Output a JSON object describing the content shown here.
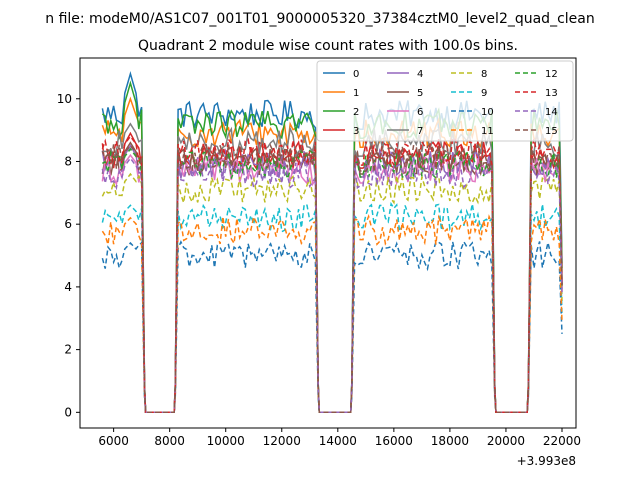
{
  "chart_data": {
    "type": "line",
    "suptitle": "n file: modeM0/AS1C07_001T01_9000005320_37384cztM0_level2_quad_clean",
    "title": "Quadrant 2 module wise count rates with 100.0s bins.",
    "xlabel": "",
    "ylabel": "",
    "x_offset_label": "+3.993e8",
    "xlim": [
      4800,
      22500
    ],
    "ylim": [
      -0.5,
      11.3
    ],
    "xticks": [
      6000,
      8000,
      10000,
      12000,
      14000,
      16000,
      18000,
      20000,
      22000
    ],
    "yticks": [
      0,
      2,
      4,
      6,
      8,
      10
    ],
    "grid": false,
    "legend_placement": "top-right",
    "legend_columns": 4,
    "segments": [
      [
        5600,
        7000
      ],
      [
        8300,
        13200
      ],
      [
        14600,
        19500
      ],
      [
        20900,
        21900
      ]
    ],
    "gap_ramps": [
      [
        7100,
        8200
      ],
      [
        13300,
        14500
      ],
      [
        19600,
        20800
      ]
    ],
    "series": [
      {
        "name": "0",
        "color": "#1f77b4",
        "dash": "solid",
        "level": 9.5,
        "peak": 10.8
      },
      {
        "name": "1",
        "color": "#ff7f0e",
        "dash": "solid",
        "level": 8.9,
        "peak": 10.0
      },
      {
        "name": "2",
        "color": "#2ca02c",
        "dash": "solid",
        "level": 9.2,
        "peak": 10.5
      },
      {
        "name": "3",
        "color": "#d62728",
        "dash": "solid",
        "level": 8.2,
        "peak": 8.9
      },
      {
        "name": "4",
        "color": "#9467bd",
        "dash": "solid",
        "level": 7.9,
        "peak": 8.5
      },
      {
        "name": "5",
        "color": "#8c564b",
        "dash": "solid",
        "level": 8.0,
        "peak": 8.6
      },
      {
        "name": "6",
        "color": "#e377c2",
        "dash": "solid",
        "level": 7.7,
        "peak": 8.2
      },
      {
        "name": "7",
        "color": "#7f7f7f",
        "dash": "solid",
        "level": 8.6,
        "peak": 9.2
      },
      {
        "name": "8",
        "color": "#bcbd22",
        "dash": "dashed",
        "level": 7.1,
        "peak": 7.6
      },
      {
        "name": "9",
        "color": "#17becf",
        "dash": "dashed",
        "level": 6.2,
        "peak": 6.6
      },
      {
        "name": "10",
        "color": "#1f77b4",
        "dash": "dashed",
        "level": 5.0,
        "peak": 5.4
      },
      {
        "name": "11",
        "color": "#ff7f0e",
        "dash": "dashed",
        "level": 5.8,
        "peak": 6.2
      },
      {
        "name": "12",
        "color": "#2ca02c",
        "dash": "dashed",
        "level": 7.9,
        "peak": 8.4
      },
      {
        "name": "13",
        "color": "#d62728",
        "dash": "dashed",
        "level": 8.3,
        "peak": 8.8
      },
      {
        "name": "14",
        "color": "#9467bd",
        "dash": "dashed",
        "level": 7.6,
        "peak": 8.1
      },
      {
        "name": "15",
        "color": "#8c564b",
        "dash": "dashed",
        "level": 8.1,
        "peak": 8.5
      }
    ]
  }
}
